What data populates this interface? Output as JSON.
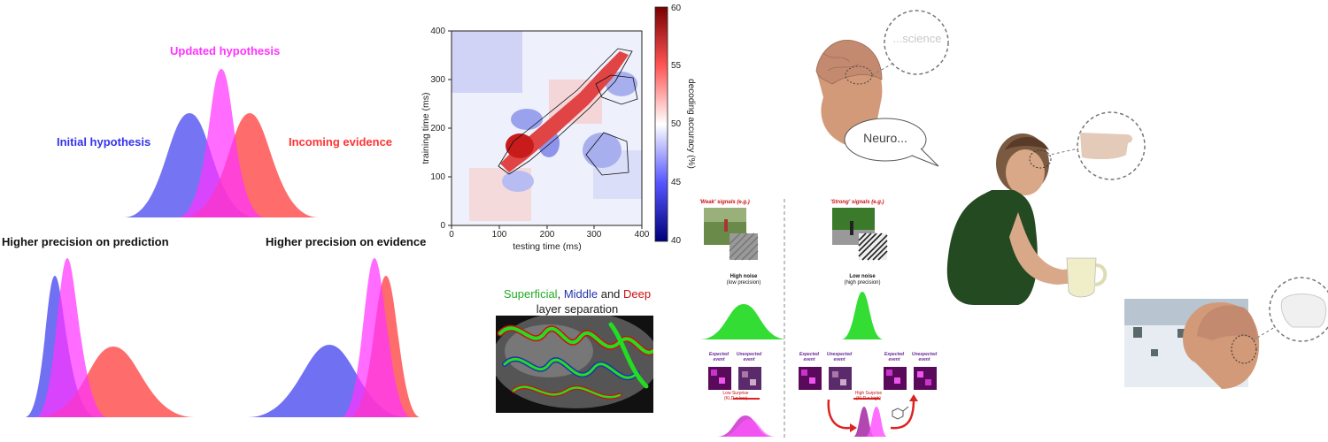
{
  "colors": {
    "initial": "#3333ee",
    "updated": "#ff33ff",
    "evidence": "#ff3333",
    "superficial": "#22aa22",
    "middle": "#2233aa",
    "deep": "#cc1111",
    "green_dist": "#33dd33"
  },
  "bayes_panel": {
    "updated_label": "Updated hypothesis",
    "initial_label": "Initial hypothesis",
    "evidence_label": "Incoming evidence",
    "prediction_precision_label": "Higher precision on prediction",
    "evidence_precision_label": "Higher precision on evidence"
  },
  "decoding_plot": {
    "ylabel": "training time (ms)",
    "xlabel": "testing time (ms)",
    "x_ticks": [
      "0",
      "100",
      "200",
      "300",
      "400"
    ],
    "y_ticks": [
      "0",
      "100",
      "200",
      "300",
      "400"
    ],
    "colorbar_label": "decoding accuracy (%)",
    "colorbar_ticks": [
      "40",
      "45",
      "50",
      "55",
      "60"
    ]
  },
  "layers": {
    "title_superficial": "Superficial",
    "title_sep1": ", ",
    "title_middle": "Middle",
    "title_sep2": " and ",
    "title_deep": "Deep",
    "subtitle": "layer separation"
  },
  "signals": {
    "weak_title": "'Weak' signals (e.g.)",
    "strong_title": "'Strong' signals (e.g.)",
    "weak_noise_1": "High noise",
    "weak_noise_2": "(low precision)",
    "strong_noise_1": "Low noise",
    "strong_noise_2": "(high precision)",
    "expected": "Expected event",
    "unexpected": "Unexpected event",
    "low_surprise_1": "Low Surprise",
    "low_surprise_2": "(KLD = low)",
    "high_surprise_1": "High Surprise",
    "high_surprise_2": "(KLD = high)"
  },
  "bubbles": {
    "thought_text": "...science",
    "speech_text": "Neuro..."
  }
}
